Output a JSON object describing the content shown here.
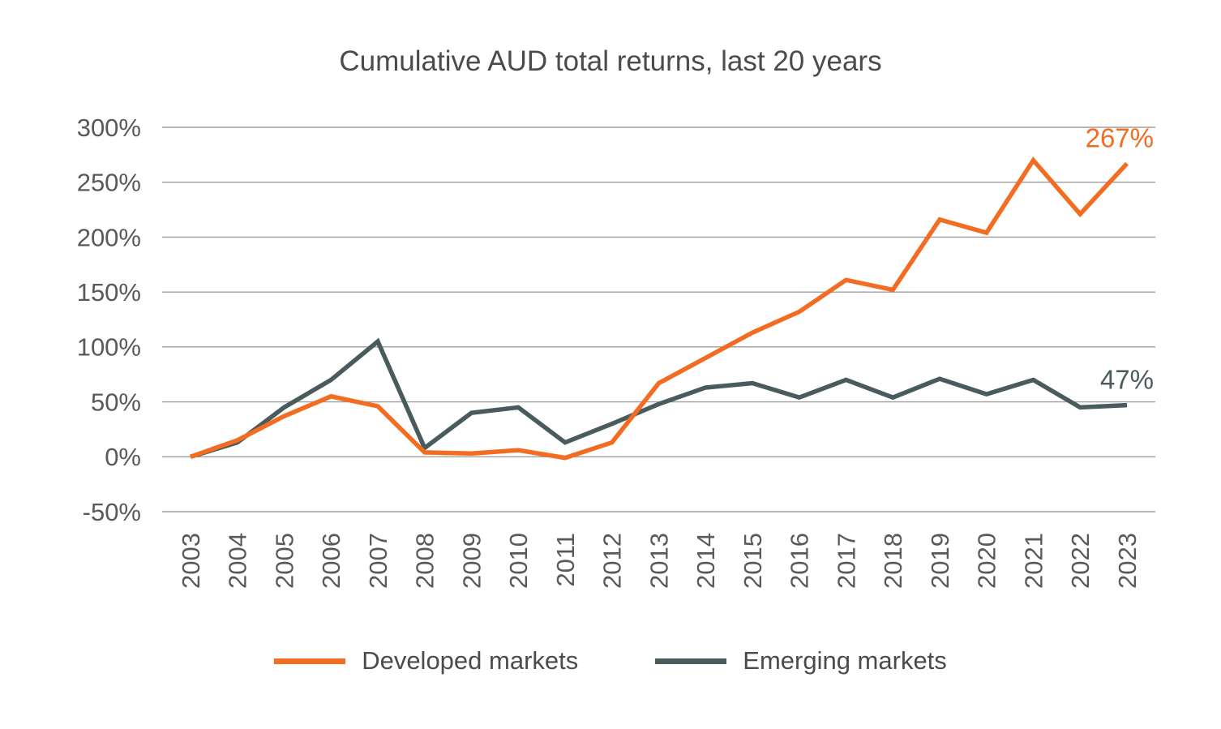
{
  "chart_data": {
    "type": "line",
    "title": "Cumulative AUD total returns, last 20 years",
    "x": [
      2003,
      2004,
      2005,
      2006,
      2007,
      2008,
      2009,
      2010,
      2011,
      2012,
      2013,
      2014,
      2015,
      2016,
      2017,
      2018,
      2019,
      2020,
      2021,
      2022,
      2023
    ],
    "series": [
      {
        "name": "Developed markets",
        "color": "#F26C22",
        "values": [
          0,
          15,
          37,
          55,
          46,
          4,
          3,
          6,
          -1,
          13,
          67,
          90,
          113,
          132,
          161,
          152,
          216,
          204,
          270,
          221,
          267
        ],
        "end_label": "267%"
      },
      {
        "name": "Emerging markets",
        "color": "#4A5B5E",
        "values": [
          0,
          13,
          45,
          70,
          105,
          8,
          40,
          45,
          13,
          30,
          48,
          63,
          67,
          54,
          70,
          54,
          71,
          57,
          70,
          45,
          47
        ],
        "end_label": "47%"
      }
    ],
    "ylim": [
      -50,
      300
    ],
    "ytick_step": 50,
    "ytick_suffix": "%",
    "ylabel": "",
    "xlabel": "",
    "grid": "horizontal",
    "grid_color": "#9E9E9E",
    "axis_text_color": "#595959",
    "legend_position": "bottom"
  }
}
